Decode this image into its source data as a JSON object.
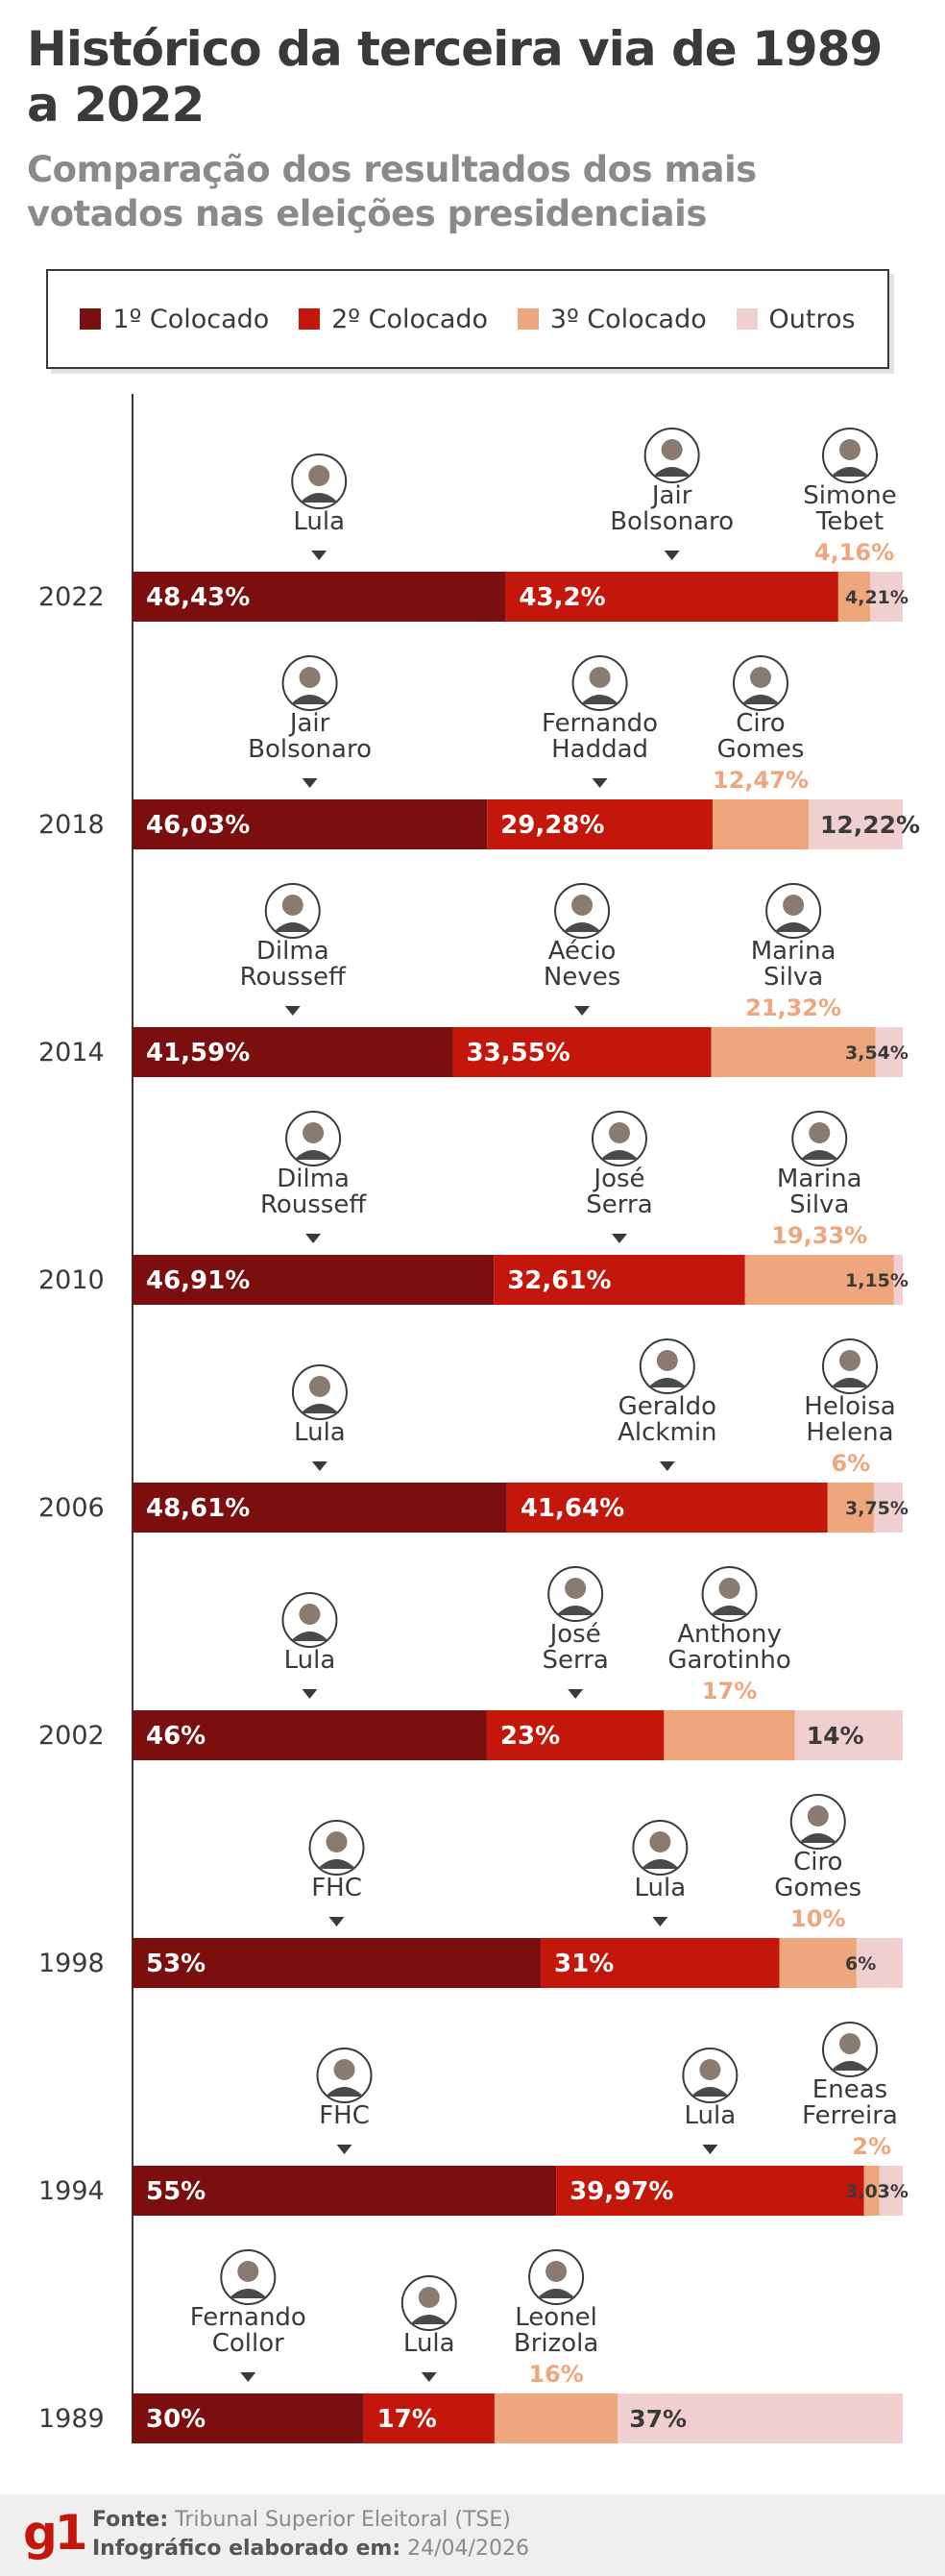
{
  "header": {
    "title": "Histórico da terceira via de 1989 a 2022",
    "subtitle": "Comparação dos resultados dos mais votados nas eleições presidenciais"
  },
  "legend": {
    "items": [
      {
        "label": "1º Colocado",
        "color": "#7b0e0e"
      },
      {
        "label": "2º Colocado",
        "color": "#c4170c"
      },
      {
        "label": "3º Colocado",
        "color": "#eea77c"
      },
      {
        "label": "Outros",
        "color": "#f0cfd0"
      }
    ]
  },
  "chart_data": {
    "type": "bar",
    "orientation": "horizontal-stacked",
    "xlim": [
      0,
      100
    ],
    "stack_labels": [
      "1º Colocado",
      "2º Colocado",
      "3º Colocado",
      "Outros"
    ],
    "colors": [
      "#7b0e0e",
      "#c4170c",
      "#eea77c",
      "#f0cfd0"
    ],
    "rows": [
      {
        "year": "2022",
        "values": [
          48.43,
          43.2,
          4.16,
          4.21
        ],
        "labels": [
          "48,43%",
          "43,2%",
          "4,16%",
          "4,21%"
        ],
        "candidates": [
          [
            "Lula"
          ],
          [
            "Jair",
            "Bolsonaro"
          ],
          [
            "Simone",
            "Tebet"
          ]
        ]
      },
      {
        "year": "2018",
        "values": [
          46.03,
          29.28,
          12.47,
          12.22
        ],
        "labels": [
          "46,03%",
          "29,28%",
          "12,47%",
          "12,22%"
        ],
        "candidates": [
          [
            "Jair",
            "Bolsonaro"
          ],
          [
            "Fernando",
            "Haddad"
          ],
          [
            "Ciro",
            "Gomes"
          ]
        ]
      },
      {
        "year": "2014",
        "values": [
          41.59,
          33.55,
          21.32,
          3.54
        ],
        "labels": [
          "41,59%",
          "33,55%",
          "21,32%",
          "3,54%"
        ],
        "candidates": [
          [
            "Dilma",
            "Rousseff"
          ],
          [
            "Aécio",
            "Neves"
          ],
          [
            "Marina",
            "Silva"
          ]
        ]
      },
      {
        "year": "2010",
        "values": [
          46.91,
          32.61,
          19.33,
          1.15
        ],
        "labels": [
          "46,91%",
          "32,61%",
          "19,33%",
          "1,15%"
        ],
        "candidates": [
          [
            "Dilma",
            "Rousseff"
          ],
          [
            "José",
            "Serra"
          ],
          [
            "Marina",
            "Silva"
          ]
        ]
      },
      {
        "year": "2006",
        "values": [
          48.61,
          41.64,
          6,
          3.75
        ],
        "labels": [
          "48,61%",
          "41,64%",
          "6%",
          "3,75%"
        ],
        "candidates": [
          [
            "Lula"
          ],
          [
            "Geraldo",
            "Alckmin"
          ],
          [
            "Heloisa",
            "Helena"
          ]
        ]
      },
      {
        "year": "2002",
        "values": [
          46,
          23,
          17,
          14
        ],
        "labels": [
          "46%",
          "23%",
          "17%",
          "14%"
        ],
        "candidates": [
          [
            "Lula"
          ],
          [
            "José",
            "Serra"
          ],
          [
            "Anthony",
            "Garotinho"
          ]
        ]
      },
      {
        "year": "1998",
        "values": [
          53,
          31,
          10,
          6
        ],
        "labels": [
          "53%",
          "31%",
          "10%",
          "6%"
        ],
        "candidates": [
          [
            "FHC"
          ],
          [
            "Lula"
          ],
          [
            "Ciro",
            "Gomes"
          ]
        ]
      },
      {
        "year": "1994",
        "values": [
          55,
          39.97,
          2,
          3.03
        ],
        "labels": [
          "55%",
          "39,97%",
          "2%",
          "3,03%"
        ],
        "candidates": [
          [
            "FHC"
          ],
          [
            "Lula"
          ],
          [
            "Eneas",
            "Ferreira"
          ]
        ]
      },
      {
        "year": "1989",
        "values": [
          30,
          17,
          16,
          37
        ],
        "labels": [
          "30%",
          "17%",
          "16%",
          "37%"
        ],
        "candidates": [
          [
            "Fernando",
            "Collor"
          ],
          [
            "Lula"
          ],
          [
            "Leonel",
            "Brizola"
          ]
        ]
      }
    ]
  },
  "footer": {
    "logo": "g1",
    "source_label": "Fonte:",
    "source_value": "Tribunal Superior Eleitoral (TSE)",
    "made_label": "Infográfico elaborado em:",
    "made_value": "24/04/2026"
  }
}
